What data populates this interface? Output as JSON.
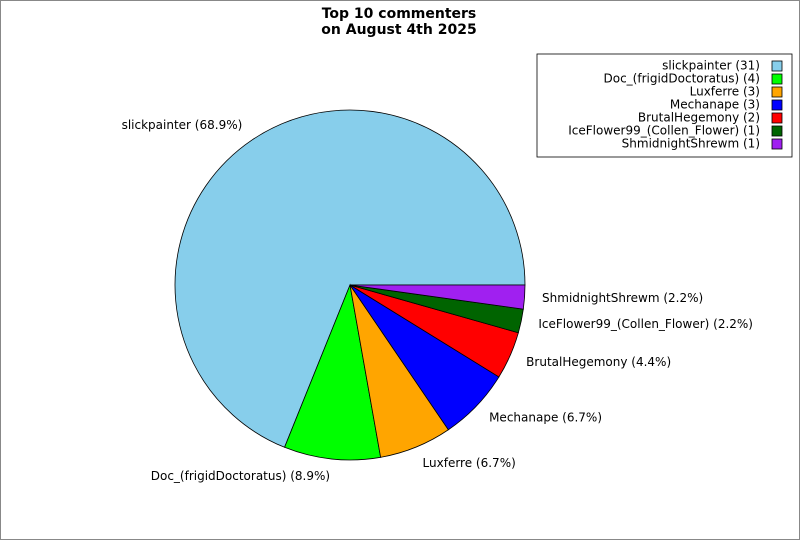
{
  "chart_data": {
    "type": "pie",
    "title": [
      "Top 10 commenters",
      "on August 4th 2025"
    ],
    "categories": [
      "slickpainter",
      "Doc_(frigidDoctoratus)",
      "Luxferre",
      "Mechanape",
      "BrutalHegemony",
      "IceFlower99_(Collen_Flower)",
      "ShmidnightShrewm"
    ],
    "values": [
      68.9,
      8.9,
      6.7,
      6.7,
      4.4,
      2.2,
      2.2
    ],
    "value_labels": [
      "slickpainter (68.9%)",
      "Doc_(frigidDoctoratus) (8.9%)",
      "Luxferre (6.7%)",
      "Mechanape (6.7%)",
      "BrutalHegemony (4.4%)",
      "IceFlower99_(Collen_Flower) (2.2%)",
      "ShmidnightShrewm (2.2%)"
    ],
    "legend_labels": [
      "slickpainter (31)",
      "Doc_(frigidDoctoratus) (4)",
      "Luxferre (3)",
      "Mechanape (3)",
      "BrutalHegemony (2)",
      "IceFlower99_(Collen_Flower) (1)",
      "ShmidnightShrewm (1)"
    ],
    "colors": [
      "#87ceeb",
      "#00ff00",
      "#ffa500",
      "#0000ff",
      "#ff0000",
      "#006400",
      "#a020f0"
    ],
    "legend_position": "upper right"
  }
}
